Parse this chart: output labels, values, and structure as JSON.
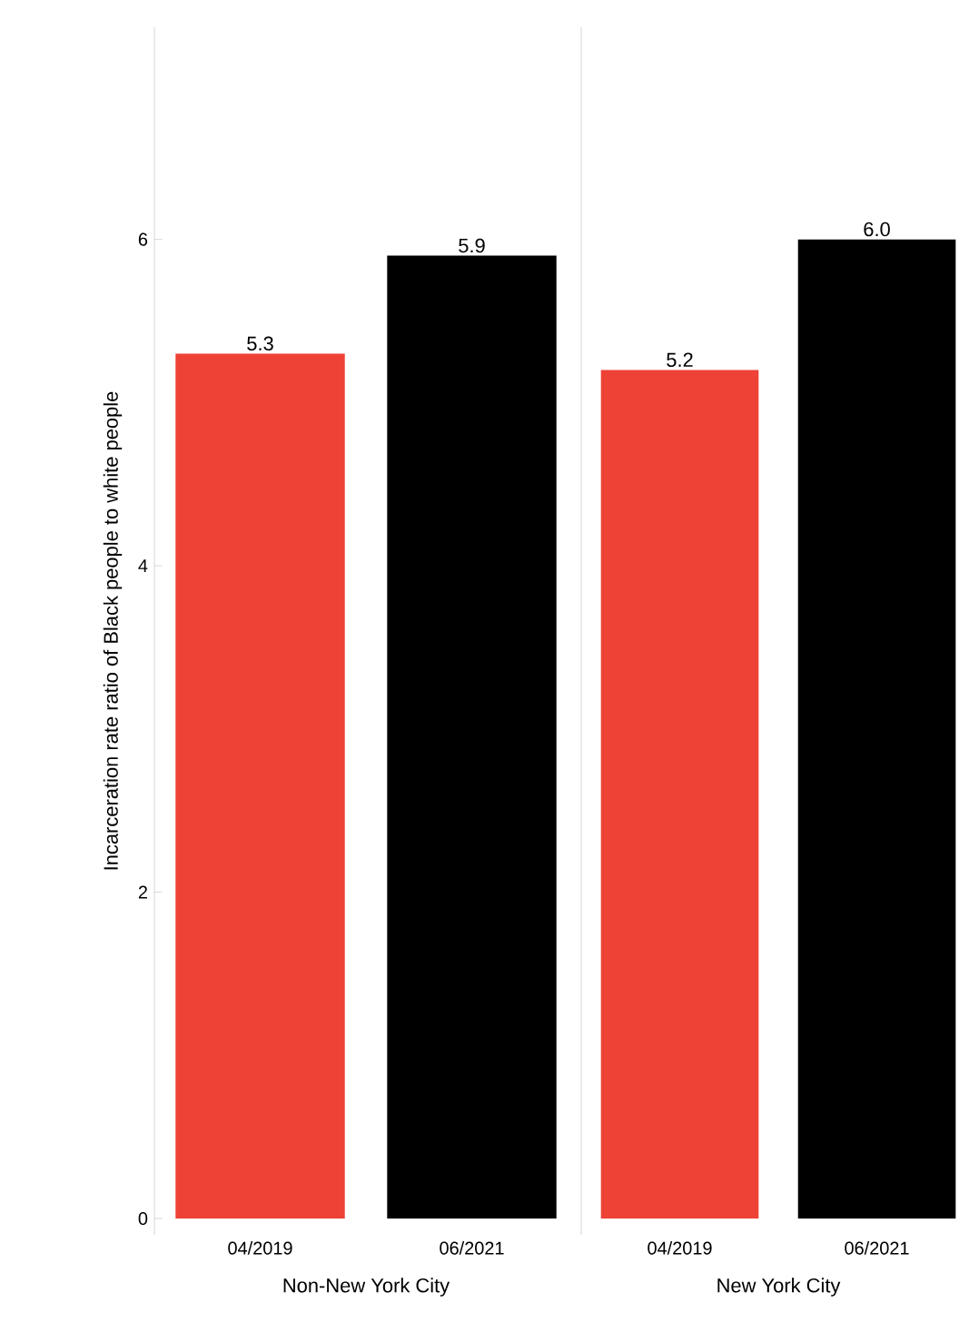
{
  "chart_data": [
    {
      "type": "bar",
      "categories": [
        "04/2019",
        "06/2021"
      ],
      "values": [
        5.3,
        5.9
      ],
      "colors": [
        "#ee4236",
        "#000000"
      ],
      "value_labels": [
        "5.3",
        "5.9"
      ],
      "xlabel": "Non-New York City",
      "ylabel": "Incarceration rate ratio of Black people to white people",
      "ylim": [
        -0.1,
        7.3
      ],
      "yticks": [
        0,
        2,
        4,
        6
      ],
      "grid": false
    },
    {
      "type": "bar",
      "categories": [
        "04/2019",
        "06/2021"
      ],
      "values": [
        5.2,
        6.0
      ],
      "colors": [
        "#ee4236",
        "#000000"
      ],
      "value_labels": [
        "5.2",
        "6.0"
      ],
      "xlabel": "New York City",
      "ylim": [
        -0.1,
        7.3
      ],
      "yticks": [
        0,
        2,
        4,
        6
      ],
      "grid": false,
      "tick_labels": "x"
    }
  ]
}
